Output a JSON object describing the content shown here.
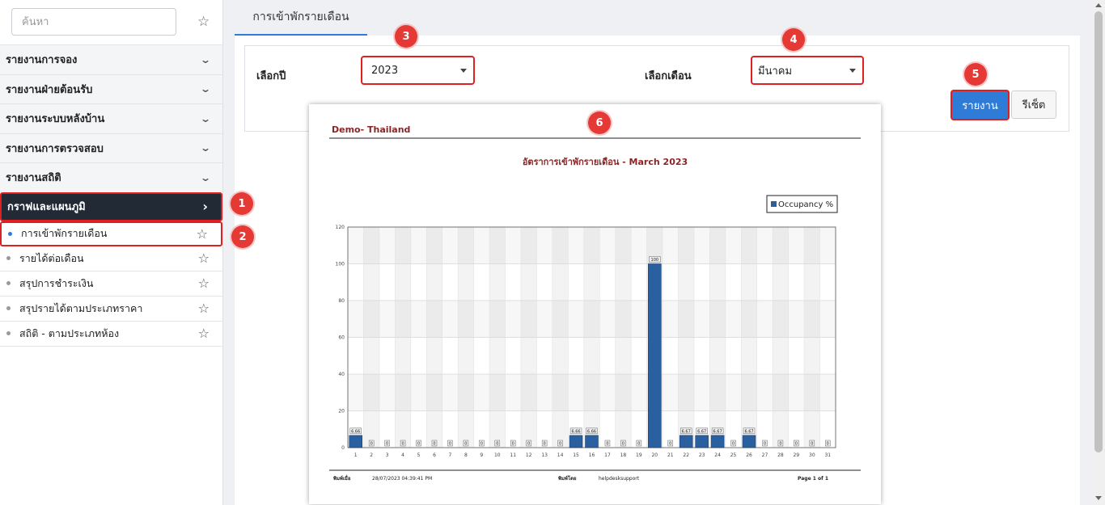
{
  "sidebar": {
    "search_placeholder": "ค้นหา",
    "sections": [
      {
        "label": "รายงานการจอง"
      },
      {
        "label": "รายงานฝ่ายต้อนรับ"
      },
      {
        "label": "รายงานระบบหลังบ้าน"
      },
      {
        "label": "รายงานการตรวจสอบ"
      },
      {
        "label": "รายงานสถิติ"
      }
    ],
    "active_section": {
      "label": "กราฟและแผนภูมิ"
    },
    "items": [
      {
        "label": "การเข้าพักรายเดือน",
        "current": true
      },
      {
        "label": "รายได้ต่อเดือน"
      },
      {
        "label": "สรุปการชำระเงิน"
      },
      {
        "label": "สรุปรายได้ตามประเภทราคา"
      },
      {
        "label": "สถิติ - ตามประเภทห้อง"
      }
    ]
  },
  "tab": {
    "label": "การเข้าพักรายเดือน"
  },
  "filters": {
    "year_label": "เลือกปี",
    "year_value": "2023",
    "month_label": "เลือกเดือน",
    "month_value": "มีนาคม",
    "report_button": "รายงาน",
    "reset_button": "รีเซ็ต"
  },
  "report": {
    "company": "Demo- Thailand",
    "footer": {
      "printed_on_label": "พิมพ์เมื่อ",
      "printed_on_value": "28/07/2023 04:39:41 PM",
      "printed_by_label": "พิมพ์โดย",
      "printed_by_value": "helpdesksupport",
      "page": "Page 1 of 1"
    }
  },
  "badges": [
    "1",
    "2",
    "3",
    "4",
    "5",
    "6"
  ],
  "colors": {
    "accent": "#2e7bd8",
    "bar": "#2a5fa0",
    "title": "#8b2525",
    "highlight": "#e02020",
    "active_bg": "#222a36"
  },
  "chart_data": {
    "type": "bar",
    "title": "อัตราการเข้าพักรายเดือน - March 2023",
    "legend": "Occupancy %",
    "legend_position": "top-right",
    "grid": true,
    "ylim": [
      0,
      120
    ],
    "yticks": [
      0,
      20,
      40,
      60,
      80,
      100,
      120
    ],
    "categories": [
      "1",
      "2",
      "3",
      "4",
      "5",
      "6",
      "7",
      "8",
      "9",
      "10",
      "11",
      "12",
      "13",
      "14",
      "15",
      "16",
      "17",
      "18",
      "19",
      "20",
      "21",
      "22",
      "23",
      "24",
      "25",
      "26",
      "27",
      "28",
      "29",
      "30",
      "31"
    ],
    "values": [
      6.66,
      0,
      0,
      0,
      0,
      0,
      0,
      0,
      0,
      0,
      0,
      0,
      0,
      0,
      6.66,
      6.66,
      0,
      0,
      0,
      100,
      0,
      6.67,
      6.67,
      6.67,
      0,
      6.67,
      0,
      0,
      0,
      0,
      0
    ],
    "labels": [
      "6.66",
      "0",
      "0",
      "0",
      "0",
      "0",
      "0",
      "0",
      "0",
      "0",
      "0",
      "0",
      "0",
      "0",
      "6.66",
      "6.66",
      "0",
      "0",
      "0",
      "100",
      "0",
      "6.67",
      "6.67",
      "6.67",
      "0",
      "6.67",
      "0",
      "0",
      "0",
      "0",
      "0"
    ]
  }
}
